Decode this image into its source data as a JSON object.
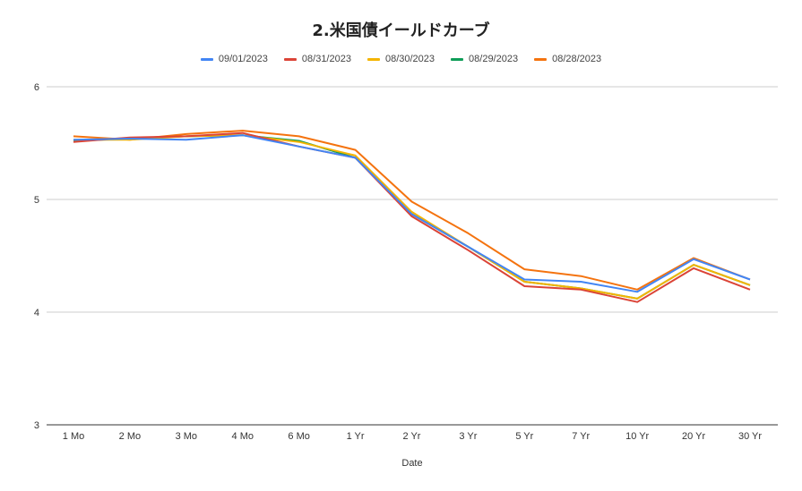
{
  "chart_data": {
    "type": "line",
    "title": "2.米国債イールドカーブ",
    "xlabel": "Date",
    "ylabel": "",
    "ylim": [
      3,
      6
    ],
    "yticks": [
      3,
      4,
      5,
      6
    ],
    "grid": true,
    "legend_position": "top",
    "categories": [
      "1 Mo",
      "2 Mo",
      "3 Mo",
      "4 Mo",
      "6 Mo",
      "1 Yr",
      "2 Yr",
      "3 Yr",
      "5 Yr",
      "7 Yr",
      "10 Yr",
      "20 Yr",
      "30 Yr"
    ],
    "series": [
      {
        "name": "09/01/2023",
        "color": "#4285F4",
        "values": [
          5.53,
          5.54,
          5.53,
          5.57,
          5.47,
          5.37,
          4.87,
          4.58,
          4.29,
          4.27,
          4.18,
          4.47,
          4.29
        ]
      },
      {
        "name": "08/31/2023",
        "color": "#DB4437",
        "values": [
          5.51,
          5.55,
          5.56,
          5.59,
          5.47,
          5.37,
          4.85,
          4.55,
          4.23,
          4.2,
          4.09,
          4.39,
          4.2
        ]
      },
      {
        "name": "08/30/2023",
        "color": "#F4B400",
        "values": [
          5.53,
          5.53,
          5.56,
          5.57,
          5.51,
          5.39,
          4.89,
          4.58,
          4.27,
          4.21,
          4.12,
          4.42,
          4.24
        ]
      },
      {
        "name": "08/29/2023",
        "color": "#0F9D58",
        "values": [
          5.52,
          5.54,
          5.56,
          5.57,
          5.52,
          5.37,
          4.87,
          4.58,
          4.27,
          4.21,
          4.12,
          4.42,
          4.24
        ]
      },
      {
        "name": "08/28/2023",
        "color": "#F4730F",
        "values": [
          5.56,
          5.53,
          5.58,
          5.61,
          5.56,
          5.44,
          4.98,
          4.7,
          4.38,
          4.32,
          4.2,
          4.48,
          4.29
        ]
      }
    ]
  }
}
